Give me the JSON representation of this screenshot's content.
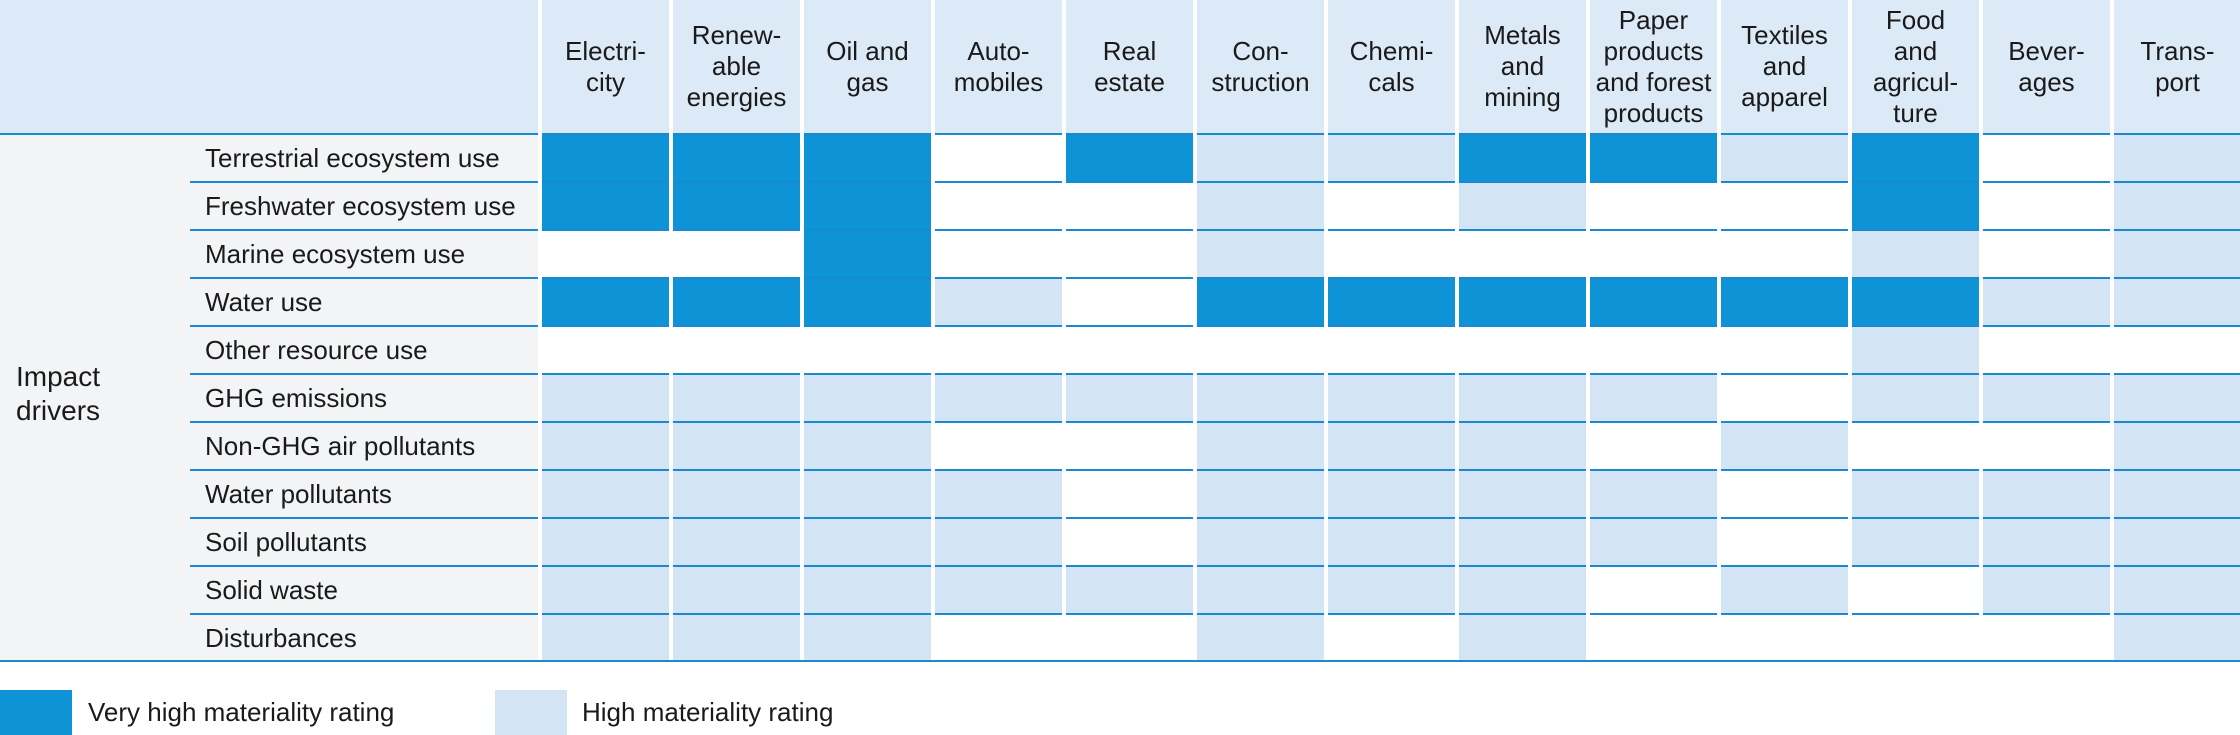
{
  "chart_data": {
    "type": "table",
    "title": "",
    "group_label": "Impact\ndrivers",
    "columns": [
      "Electri-\ncity",
      "Renew-\nable\nenergies",
      "Oil and\ngas",
      "Auto-\nmobiles",
      "Real\nestate",
      "Con-\nstruction",
      "Chemi-\ncals",
      "Metals\nand\nmining",
      "Paper\nproducts\nand forest\nproducts",
      "Textiles\nand\napparel",
      "Food\nand\nagricul-\nture",
      "Bever-\nages",
      "Trans-\nport"
    ],
    "rows": [
      {
        "label": "Terrestrial ecosystem use",
        "values": [
          2,
          2,
          2,
          0,
          2,
          1,
          1,
          2,
          2,
          1,
          2,
          0,
          1
        ]
      },
      {
        "label": "Freshwater ecosystem use",
        "values": [
          2,
          2,
          2,
          0,
          0,
          1,
          0,
          1,
          0,
          0,
          2,
          0,
          1
        ]
      },
      {
        "label": "Marine ecosystem use",
        "values": [
          0,
          0,
          2,
          0,
          0,
          1,
          0,
          0,
          0,
          0,
          1,
          0,
          1
        ]
      },
      {
        "label": "Water use",
        "values": [
          2,
          2,
          2,
          1,
          0,
          2,
          2,
          2,
          2,
          2,
          2,
          1,
          1
        ]
      },
      {
        "label": "Other resource use",
        "values": [
          0,
          0,
          0,
          0,
          0,
          0,
          0,
          0,
          0,
          0,
          1,
          0,
          0
        ]
      },
      {
        "label": "GHG emissions",
        "values": [
          1,
          1,
          1,
          1,
          1,
          1,
          1,
          1,
          1,
          0,
          1,
          1,
          1
        ]
      },
      {
        "label": "Non-GHG air pollutants",
        "values": [
          1,
          1,
          1,
          0,
          0,
          1,
          1,
          1,
          0,
          1,
          0,
          0,
          1
        ]
      },
      {
        "label": "Water pollutants",
        "values": [
          1,
          1,
          1,
          1,
          0,
          1,
          1,
          1,
          1,
          0,
          1,
          1,
          1
        ]
      },
      {
        "label": "Soil pollutants",
        "values": [
          1,
          1,
          1,
          1,
          0,
          1,
          1,
          1,
          1,
          0,
          1,
          1,
          1
        ]
      },
      {
        "label": "Solid waste",
        "values": [
          1,
          1,
          1,
          1,
          1,
          1,
          1,
          1,
          0,
          1,
          0,
          1,
          1
        ]
      },
      {
        "label": "Disturbances",
        "values": [
          1,
          1,
          1,
          0,
          0,
          1,
          0,
          1,
          0,
          0,
          0,
          0,
          1
        ]
      }
    ],
    "value_scale": {
      "0": "none",
      "1": "High materiality rating",
      "2": "Very high materiality rating"
    },
    "legend": [
      {
        "label": "Very high materiality rating",
        "value": 2
      },
      {
        "label": "High materiality rating",
        "value": 1
      }
    ],
    "colors": {
      "very_high": "#0e93d6",
      "high": "#d3e4f4",
      "none": "#ffffff",
      "header": "#dce9f7",
      "rule": "#1a8ad0"
    }
  }
}
